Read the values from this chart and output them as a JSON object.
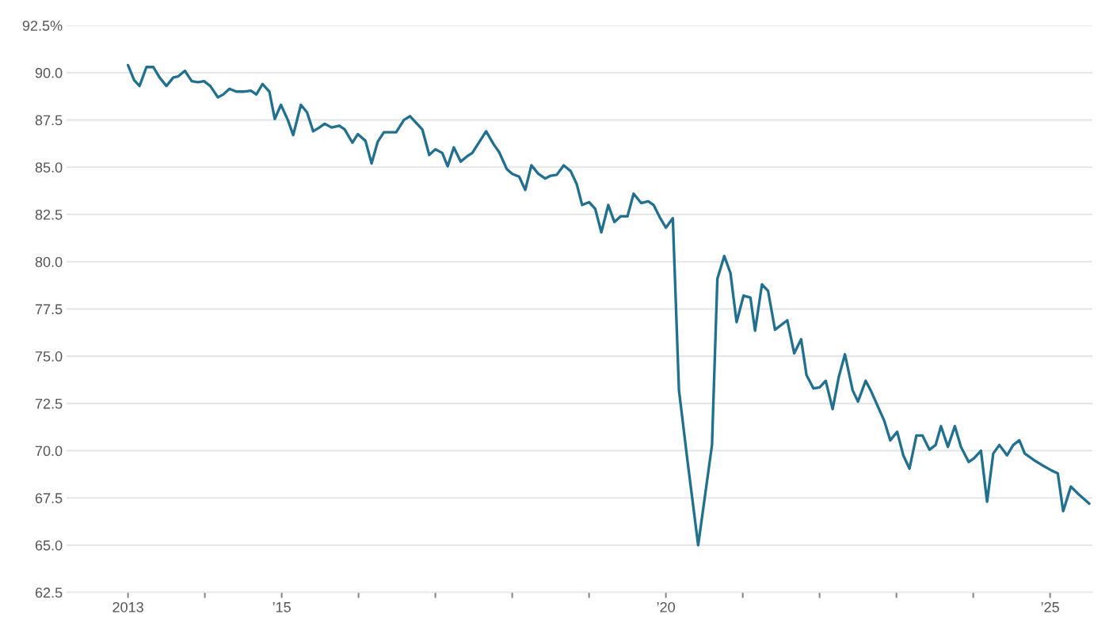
{
  "chart_data": {
    "type": "line",
    "x": [
      2013.0,
      2013.08,
      2013.15,
      2013.24,
      2013.33,
      2013.41,
      2013.5,
      2013.59,
      2013.65,
      2013.74,
      2013.83,
      2013.91,
      2013.99,
      2014.07,
      2014.17,
      2014.24,
      2014.32,
      2014.41,
      2014.5,
      2014.6,
      2014.67,
      2014.75,
      2014.84,
      2014.91,
      2014.99,
      2015.08,
      2015.15,
      2015.25,
      2015.33,
      2015.41,
      2015.49,
      2015.56,
      2015.65,
      2015.75,
      2015.82,
      2015.92,
      2015.99,
      2016.09,
      2016.17,
      2016.25,
      2016.33,
      2016.49,
      2016.59,
      2016.67,
      2016.83,
      2016.92,
      2017.0,
      2017.09,
      2017.16,
      2017.24,
      2017.33,
      2017.42,
      2017.48,
      2017.66,
      2017.76,
      2017.83,
      2017.93,
      2018.0,
      2018.09,
      2018.17,
      2018.25,
      2018.34,
      2018.43,
      2018.5,
      2018.58,
      2018.67,
      2018.76,
      2018.84,
      2018.91,
      2019.0,
      2019.08,
      2019.16,
      2019.25,
      2019.33,
      2019.41,
      2019.5,
      2019.58,
      2019.68,
      2019.77,
      2019.84,
      2019.92,
      2020.0,
      2020.09,
      2020.17,
      2020.28,
      2020.42,
      2020.6,
      2020.67,
      2020.76,
      2020.84,
      2020.92,
      2021.01,
      2021.1,
      2021.16,
      2021.25,
      2021.33,
      2021.42,
      2021.58,
      2021.67,
      2021.76,
      2021.83,
      2021.92,
      2022.0,
      2022.08,
      2022.17,
      2022.25,
      2022.33,
      2022.43,
      2022.5,
      2022.6,
      2022.67,
      2022.84,
      2022.92,
      2023.01,
      2023.09,
      2023.17,
      2023.26,
      2023.34,
      2023.43,
      2023.51,
      2023.58,
      2023.67,
      2023.76,
      2023.84,
      2023.94,
      2024.01,
      2024.1,
      2024.18,
      2024.26,
      2024.34,
      2024.44,
      2024.52,
      2024.6,
      2024.67,
      2024.79,
      2024.89,
      2025.02,
      2025.1,
      2025.17,
      2025.27,
      2025.37,
      2025.51
    ],
    "series": [
      {
        "color": "#21708f",
        "values": [
          90.4,
          89.6,
          89.3,
          90.3,
          90.3,
          89.75,
          89.3,
          89.75,
          89.8,
          90.1,
          89.55,
          89.5,
          89.55,
          89.3,
          88.7,
          88.85,
          89.15,
          89.0,
          89.0,
          89.05,
          88.85,
          89.4,
          89.0,
          87.55,
          88.3,
          87.5,
          86.7,
          88.3,
          87.9,
          86.9,
          87.1,
          87.3,
          87.1,
          87.2,
          87.0,
          86.3,
          86.75,
          86.4,
          85.2,
          86.35,
          86.85,
          86.85,
          87.5,
          87.7,
          87.0,
          85.65,
          85.95,
          85.75,
          85.05,
          86.05,
          85.3,
          85.6,
          85.75,
          86.9,
          86.2,
          85.8,
          84.9,
          84.65,
          84.5,
          83.8,
          85.1,
          84.65,
          84.4,
          84.55,
          84.6,
          85.1,
          84.8,
          84.1,
          83.0,
          83.15,
          82.8,
          81.55,
          83.0,
          82.1,
          82.4,
          82.4,
          83.6,
          83.1,
          83.2,
          83.0,
          82.35,
          81.8,
          82.3,
          73.2,
          69.5,
          65.0,
          70.3,
          79.1,
          80.3,
          79.4,
          76.8,
          78.2,
          78.1,
          76.35,
          78.8,
          78.45,
          76.4,
          76.9,
          75.15,
          75.9,
          74.0,
          73.3,
          73.35,
          73.7,
          72.2,
          73.9,
          75.1,
          73.2,
          72.6,
          73.7,
          73.15,
          71.6,
          70.55,
          71.0,
          69.75,
          69.05,
          70.8,
          70.8,
          70.05,
          70.3,
          71.3,
          70.2,
          71.3,
          70.2,
          69.4,
          69.6,
          70.0,
          67.3,
          69.85,
          70.3,
          69.75,
          70.3,
          70.55,
          69.85,
          69.5,
          69.25,
          68.95,
          68.8,
          66.8,
          68.1,
          67.7,
          67.2
        ]
      }
    ],
    "xlim": [
      2012.2,
      2025.55
    ],
    "xticks": [
      {
        "value": 2013,
        "label": "2013"
      },
      {
        "value": 2014,
        "label": null
      },
      {
        "value": 2015,
        "label": "’15"
      },
      {
        "value": 2016,
        "label": null
      },
      {
        "value": 2017,
        "label": null
      },
      {
        "value": 2018,
        "label": null
      },
      {
        "value": 2019,
        "label": null
      },
      {
        "value": 2020,
        "label": "’20"
      },
      {
        "value": 2021,
        "label": null
      },
      {
        "value": 2022,
        "label": null
      },
      {
        "value": 2023,
        "label": null
      },
      {
        "value": 2024,
        "label": null
      },
      {
        "value": 2025,
        "label": "’25"
      }
    ],
    "ylim": [
      62.5,
      92.5
    ],
    "yticks": [
      62.5,
      {
        "value": 65,
        "label": "65.0"
      },
      67.5,
      {
        "value": 70,
        "label": "70.0"
      },
      72.5,
      {
        "value": 75,
        "label": "75.0"
      },
      77.5,
      {
        "value": 80,
        "label": "80.0"
      },
      82.5,
      {
        "value": 85,
        "label": "85.0"
      },
      87.5,
      {
        "value": 90,
        "label": "90.0"
      },
      {
        "value": 92.5,
        "label": "92.5%"
      }
    ],
    "grid": "y",
    "legend": false,
    "marker": "none",
    "line_style": "solid"
  }
}
